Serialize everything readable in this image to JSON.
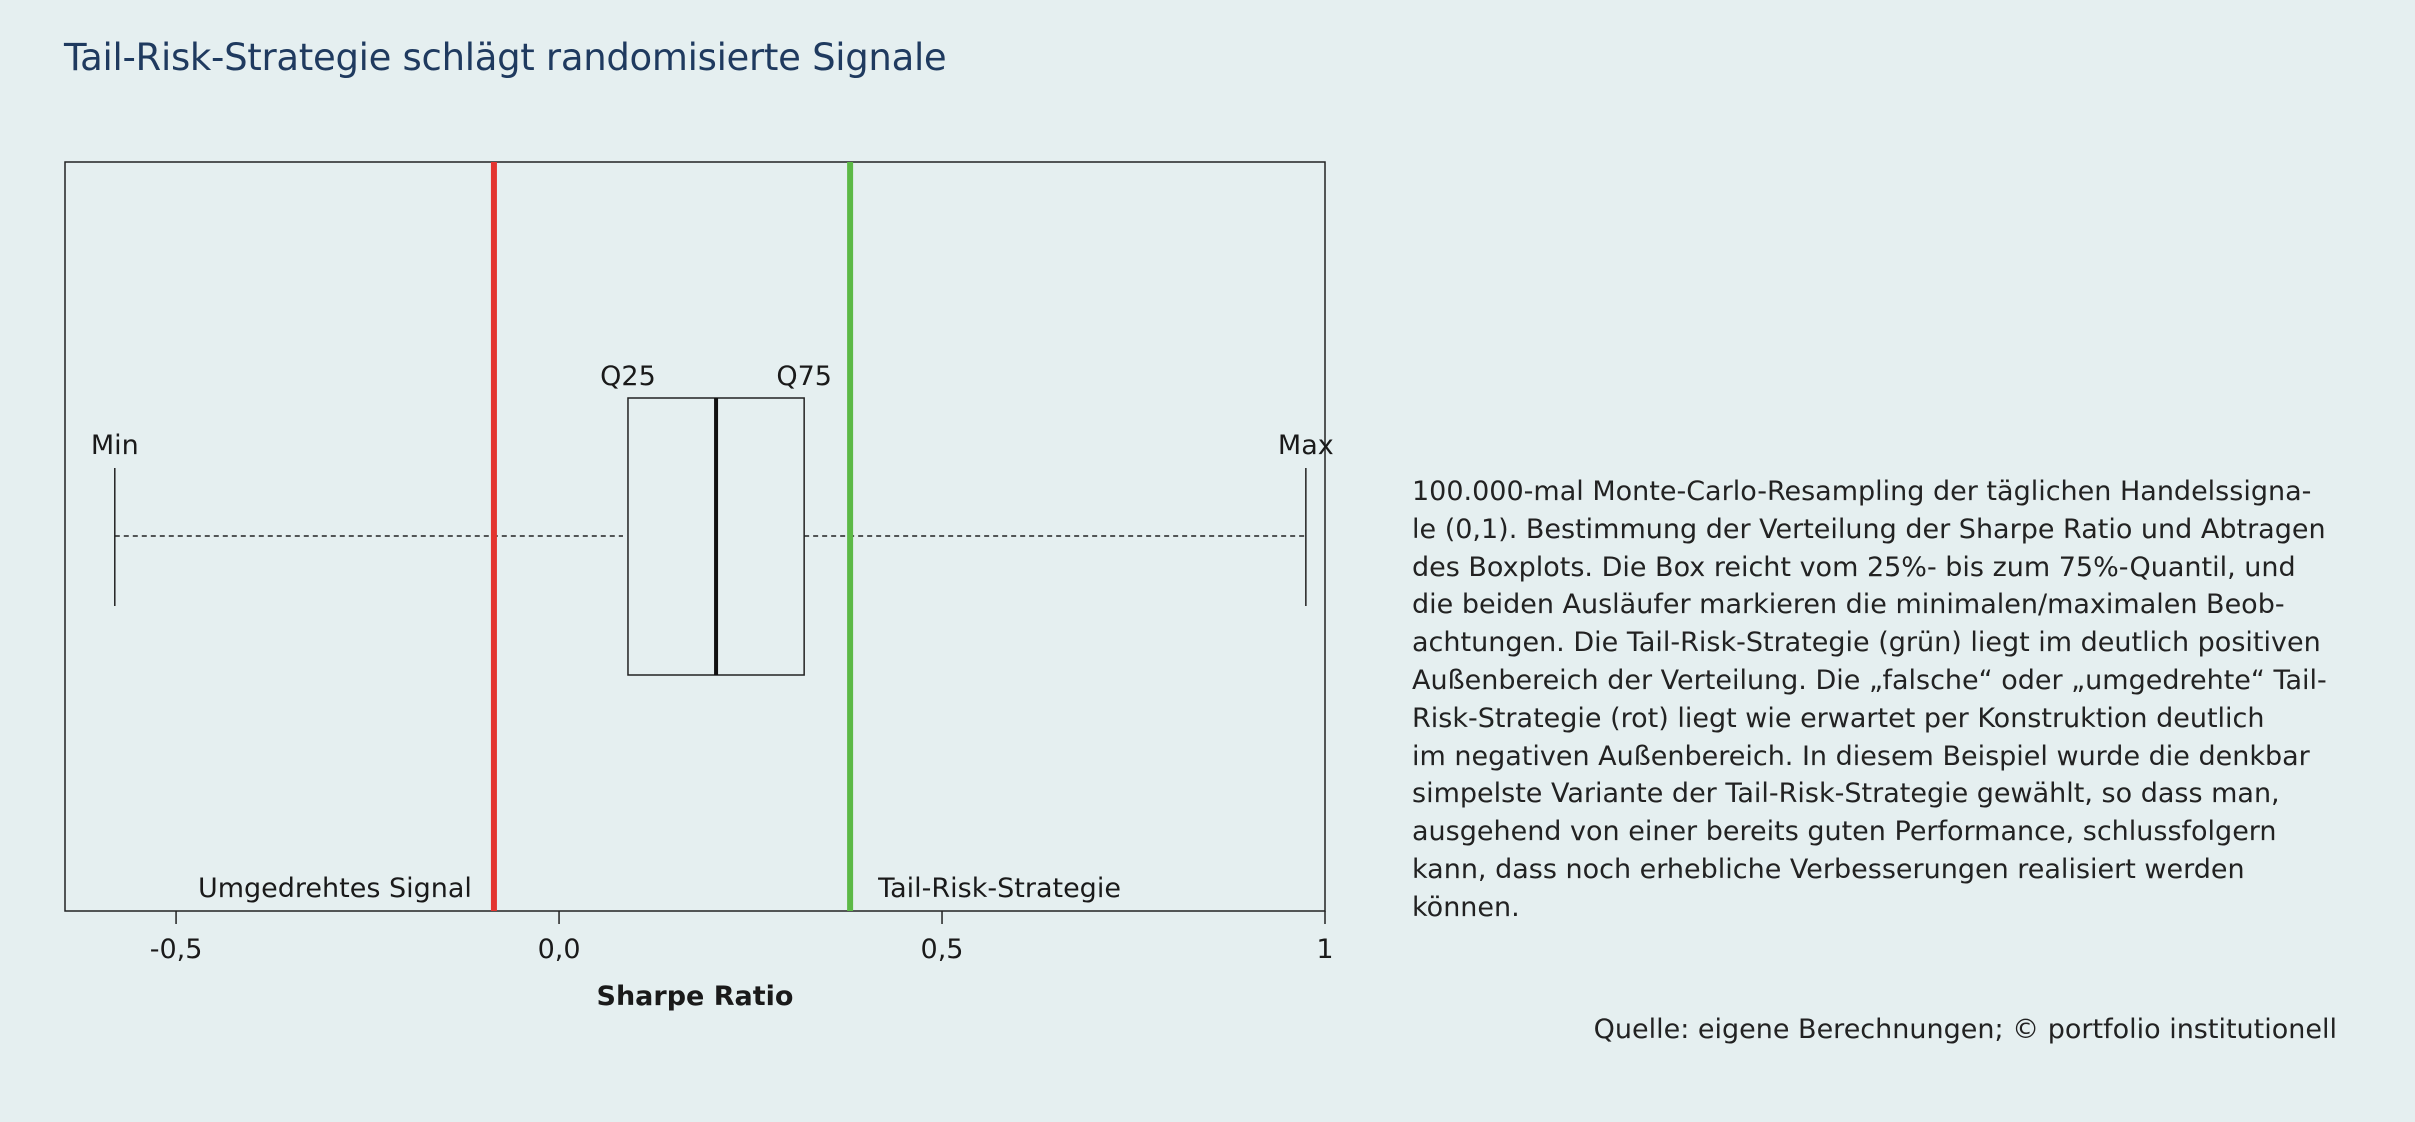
{
  "title": "Tail-Risk-Strategie schlägt randomisierte Signale",
  "chart_data": {
    "type": "boxplot",
    "title": "Tail-Risk-Strategie schlägt randomisierte Signale",
    "xlabel": "Sharpe Ratio",
    "ylabel": "",
    "xlim": [
      -0.645,
      1.0
    ],
    "xticks": [
      {
        "value": -0.5,
        "label": "-0,5"
      },
      {
        "value": 0.0,
        "label": "0,0"
      },
      {
        "value": 0.5,
        "label": "0,5"
      },
      {
        "value": 1.0,
        "label": "1"
      }
    ],
    "box": {
      "min": -0.58,
      "q25": 0.09,
      "median": 0.205,
      "q75": 0.32,
      "max": 0.975,
      "labels": {
        "min": "Min",
        "q25": "Q25",
        "q75": "Q75",
        "max": "Max"
      }
    },
    "reference_lines": [
      {
        "name": "Umgedrehtes Signal",
        "value": -0.085,
        "color": "#e3342f"
      },
      {
        "name": "Tail-Risk-Strategie",
        "value": 0.38,
        "color": "#5cb946"
      }
    ],
    "grid": false
  },
  "description_lines": [
    "100.000-mal Monte-Carlo-Resampling der täglichen Handelssigna-",
    "le (0,1). Bestimmung der Verteilung der Sharpe Ratio und Abtragen",
    "des Boxplots. Die Box reicht vom 25%- bis zum 75%-Quantil, und",
    "die beiden Ausläufer markieren die minimalen/maximalen Beob-",
    "achtungen. Die Tail-Risk-Strategie (grün) liegt im deutlich positiven",
    "Außenbereich der Verteilung. Die „falsche“ oder „umgedrehte“ Tail-",
    "Risk-Strategie (rot) liegt wie erwartet per Konstruktion deutlich",
    "im negativen Außenbereich. In diesem Beispiel wurde die denkbar",
    "simpelste Variante der Tail-Risk-Strategie gewählt, so dass man,",
    "ausgehend von einer bereits guten Performance, schlussfolgern",
    "kann, dass noch erhebliche Verbesserungen realisiert werden",
    "können."
  ],
  "source": "Quelle: eigene Berechnungen; © portfolio institutionell"
}
